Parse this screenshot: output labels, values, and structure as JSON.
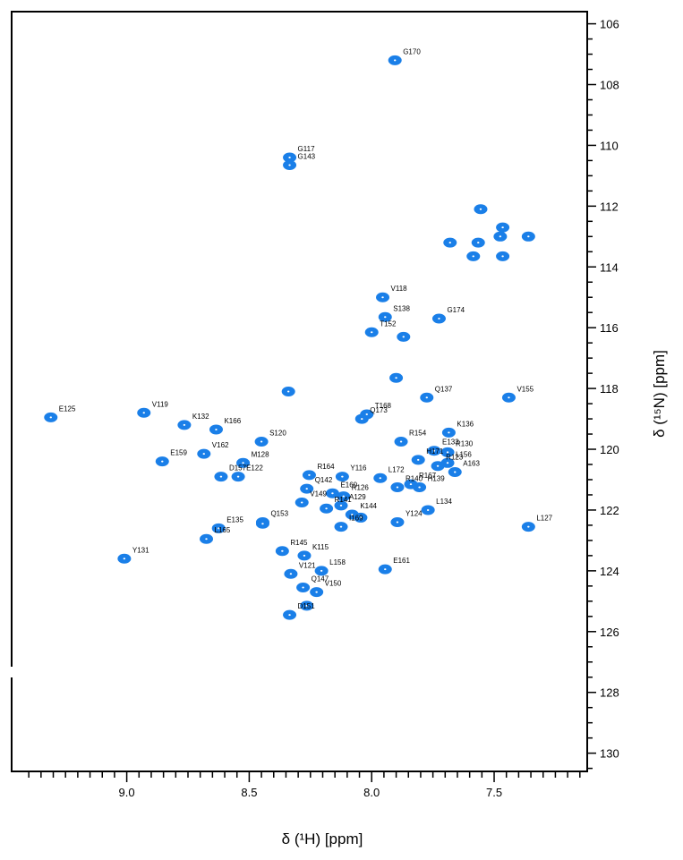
{
  "chart_data": {
    "type": "scatter",
    "xlabel": "δ (¹H) [ppm]",
    "ylabel": "δ (¹⁵N) [ppm]",
    "xlim": [
      9.47,
      7.12
    ],
    "ylim": [
      105.6,
      130.6
    ],
    "x_ticks": [
      "9.0",
      "8.5",
      "8.0",
      "7.5"
    ],
    "y_ticks": [
      "106",
      "108",
      "110",
      "112",
      "114",
      "116",
      "118",
      "120",
      "122",
      "124",
      "126",
      "128",
      "130"
    ],
    "peak_color": "#1a7fe8",
    "peaks": [
      {
        "label": "G170",
        "x": 7.905,
        "y": 107.2
      },
      {
        "label": "G117",
        "x": 8.335,
        "y": 110.4
      },
      {
        "label": "G143",
        "x": 8.335,
        "y": 110.65
      },
      {
        "label": "V118",
        "x": 7.955,
        "y": 115.0
      },
      {
        "label": "S138",
        "x": 7.945,
        "y": 115.65
      },
      {
        "label": "G174",
        "x": 7.725,
        "y": 115.7
      },
      {
        "label": "T152",
        "x": 8.0,
        "y": 116.15
      },
      {
        "label": "Q137",
        "x": 7.775,
        "y": 118.3
      },
      {
        "label": "V155",
        "x": 7.44,
        "y": 118.3
      },
      {
        "label": "E125",
        "x": 9.31,
        "y": 118.95
      },
      {
        "label": "V119",
        "x": 8.93,
        "y": 118.8
      },
      {
        "label": "K132",
        "x": 8.765,
        "y": 119.2
      },
      {
        "label": "K166",
        "x": 8.635,
        "y": 119.35
      },
      {
        "label": "T168",
        "x": 8.02,
        "y": 118.85
      },
      {
        "label": "Q173",
        "x": 8.04,
        "y": 119.0
      },
      {
        "label": "S120",
        "x": 8.45,
        "y": 119.75
      },
      {
        "label": "K136",
        "x": 7.685,
        "y": 119.45
      },
      {
        "label": "R154",
        "x": 7.88,
        "y": 119.75
      },
      {
        "label": "E133",
        "x": 7.745,
        "y": 120.05
      },
      {
        "label": "R130",
        "x": 7.69,
        "y": 120.1
      },
      {
        "label": "E159",
        "x": 8.855,
        "y": 120.4
      },
      {
        "label": "V162",
        "x": 8.685,
        "y": 120.15
      },
      {
        "label": "M128",
        "x": 8.525,
        "y": 120.45
      },
      {
        "label": "H171",
        "x": 7.81,
        "y": 120.35
      },
      {
        "label": "L156",
        "x": 7.69,
        "y": 120.45
      },
      {
        "label": "D157",
        "x": 8.615,
        "y": 120.9
      },
      {
        "label": "E122",
        "x": 8.545,
        "y": 120.9
      },
      {
        "label": "R164",
        "x": 8.255,
        "y": 120.85
      },
      {
        "label": "Y116",
        "x": 8.12,
        "y": 120.9
      },
      {
        "label": "L172",
        "x": 7.965,
        "y": 120.95
      },
      {
        "label": "R123",
        "x": 7.73,
        "y": 120.55
      },
      {
        "label": "A163",
        "x": 7.66,
        "y": 120.75
      },
      {
        "label": "R167",
        "x": 7.84,
        "y": 121.15
      },
      {
        "label": "R140",
        "x": 7.895,
        "y": 121.25
      },
      {
        "label": "H139",
        "x": 7.805,
        "y": 121.25
      },
      {
        "label": "Q142",
        "x": 8.265,
        "y": 121.3
      },
      {
        "label": "E160",
        "x": 8.16,
        "y": 121.45
      },
      {
        "label": "R126",
        "x": 8.115,
        "y": 121.55
      },
      {
        "label": "V149",
        "x": 8.285,
        "y": 121.75
      },
      {
        "label": "A129",
        "x": 8.125,
        "y": 121.85
      },
      {
        "label": "R141",
        "x": 8.185,
        "y": 121.95
      },
      {
        "label": "L134",
        "x": 7.77,
        "y": 122.0
      },
      {
        "label": "K144",
        "x": 8.08,
        "y": 122.15
      },
      {
        "label": "I169",
        "x": 8.125,
        "y": 122.55
      },
      {
        "label": "E135",
        "x": 8.625,
        "y": 122.6
      },
      {
        "label": "Q153",
        "x": 8.445,
        "y": 122.4
      },
      {
        "label": "Y124",
        "x": 7.895,
        "y": 122.4
      },
      {
        "label": "L127",
        "x": 7.36,
        "y": 122.55
      },
      {
        "label": "L165",
        "x": 8.675,
        "y": 122.95
      },
      {
        "label": "R145",
        "x": 8.365,
        "y": 123.35
      },
      {
        "label": "K115",
        "x": 8.275,
        "y": 123.5
      },
      {
        "label": "Y131",
        "x": 9.01,
        "y": 123.6
      },
      {
        "label": "L158",
        "x": 8.205,
        "y": 124.0
      },
      {
        "label": "E161",
        "x": 7.945,
        "y": 123.95
      },
      {
        "label": "V121",
        "x": 8.33,
        "y": 124.1
      },
      {
        "label": "Q147",
        "x": 8.28,
        "y": 124.55
      },
      {
        "label": "V150",
        "x": 8.225,
        "y": 124.7
      },
      {
        "label": "D151",
        "x": 8.335,
        "y": 125.45
      }
    ],
    "unlabeled_peaks": [
      {
        "x": 7.555,
        "y": 112.1
      },
      {
        "x": 7.475,
        "y": 113.0
      },
      {
        "x": 7.465,
        "y": 112.7
      },
      {
        "x": 7.36,
        "y": 113.0
      },
      {
        "x": 7.68,
        "y": 113.2
      },
      {
        "x": 7.565,
        "y": 113.2
      },
      {
        "x": 7.585,
        "y": 113.65
      },
      {
        "x": 7.465,
        "y": 113.65
      },
      {
        "x": 7.87,
        "y": 116.3
      },
      {
        "x": 7.9,
        "y": 117.65
      },
      {
        "x": 8.34,
        "y": 118.1
      },
      {
        "x": 8.445,
        "y": 122.45
      },
      {
        "x": 8.045,
        "y": 122.25
      },
      {
        "x": 8.265,
        "y": 125.15
      }
    ]
  }
}
